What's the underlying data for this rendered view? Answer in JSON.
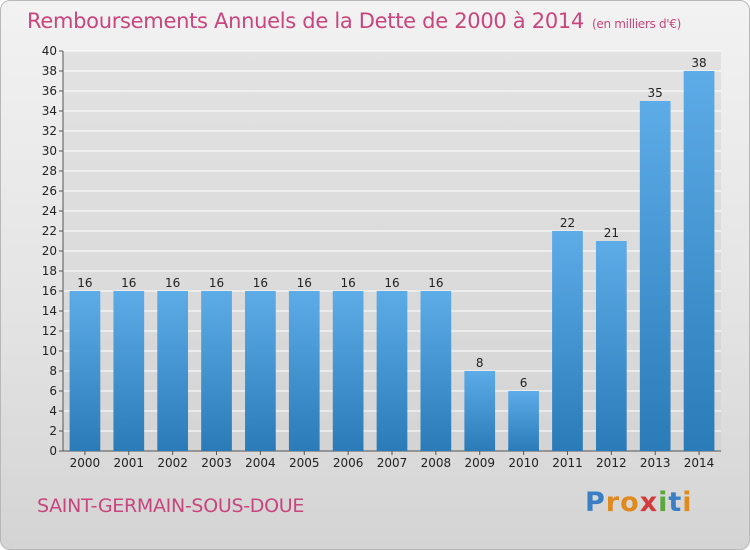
{
  "header": {
    "title": "Remboursements Annuels de la Dette de 2000 à 2014",
    "subtitle": "(en milliers d'€)"
  },
  "footer": {
    "commune": "SAINT-GERMAIN-SOUS-DOUE",
    "logo": "Proxiti",
    "logo_letters": [
      {
        "ch": "P",
        "color": "#3a7fc4"
      },
      {
        "ch": "r",
        "color": "#e08a1e"
      },
      {
        "ch": "o",
        "color": "#e08a1e"
      },
      {
        "ch": "x",
        "color": "#d43a3a"
      },
      {
        "ch": "i",
        "color": "#5aa83a"
      },
      {
        "ch": "t",
        "color": "#3a7fc4"
      },
      {
        "ch": "i",
        "color": "#e08a1e"
      }
    ]
  },
  "colors": {
    "accent_text": "#c8457e",
    "bar_top": "#5dace8",
    "bar_bottom": "#2a7bb8",
    "grid": "#ffffff"
  },
  "chart_data": {
    "type": "bar",
    "title": "Remboursements Annuels de la Dette de 2000 à 2014",
    "subtitle": "(en milliers d'€)",
    "categories": [
      "2000",
      "2001",
      "2002",
      "2003",
      "2004",
      "2005",
      "2006",
      "2007",
      "2008",
      "2009",
      "2010",
      "2011",
      "2012",
      "2013",
      "2014"
    ],
    "values": [
      16,
      16,
      16,
      16,
      16,
      16,
      16,
      16,
      16,
      8,
      6,
      22,
      21,
      35,
      38
    ],
    "data_labels": [
      "16",
      "16",
      "16",
      "16",
      "16",
      "16",
      "16",
      "16",
      "16",
      "8",
      "6",
      "22",
      "21",
      "35",
      "38"
    ],
    "ylim": [
      0,
      40
    ],
    "yticks": [
      "0",
      "2",
      "4",
      "6",
      "8",
      "10",
      "12",
      "14",
      "16",
      "18",
      "20",
      "22",
      "24",
      "26",
      "28",
      "30",
      "32",
      "34",
      "36",
      "38",
      "40"
    ],
    "grid": true,
    "legend": "none"
  }
}
